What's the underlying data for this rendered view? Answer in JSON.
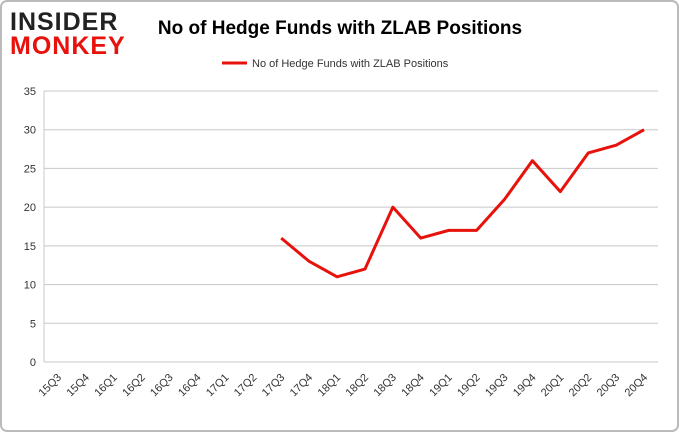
{
  "logo": {
    "top": "INSIDER",
    "bottom": "MONKEY"
  },
  "chart_data": {
    "type": "line",
    "title": "No of Hedge Funds with ZLAB Positions",
    "categories": [
      "15Q3",
      "15Q4",
      "16Q1",
      "16Q2",
      "16Q3",
      "16Q4",
      "17Q1",
      "17Q2",
      "17Q3",
      "17Q4",
      "18Q1",
      "18Q2",
      "18Q3",
      "18Q4",
      "19Q1",
      "19Q2",
      "19Q3",
      "19Q4",
      "20Q1",
      "20Q2",
      "20Q3",
      "20Q4"
    ],
    "series": [
      {
        "name": "No of Hedge Funds with ZLAB Positions",
        "color": "#e8120c",
        "values": [
          null,
          null,
          null,
          null,
          null,
          null,
          null,
          null,
          16,
          13,
          11,
          12,
          20,
          16,
          17,
          17,
          21,
          26,
          22,
          27,
          28,
          30
        ]
      }
    ],
    "ylim": [
      0,
      35
    ],
    "yticks": [
      0,
      5,
      10,
      15,
      20,
      25,
      30,
      35
    ],
    "grid": true,
    "legend": "top"
  }
}
